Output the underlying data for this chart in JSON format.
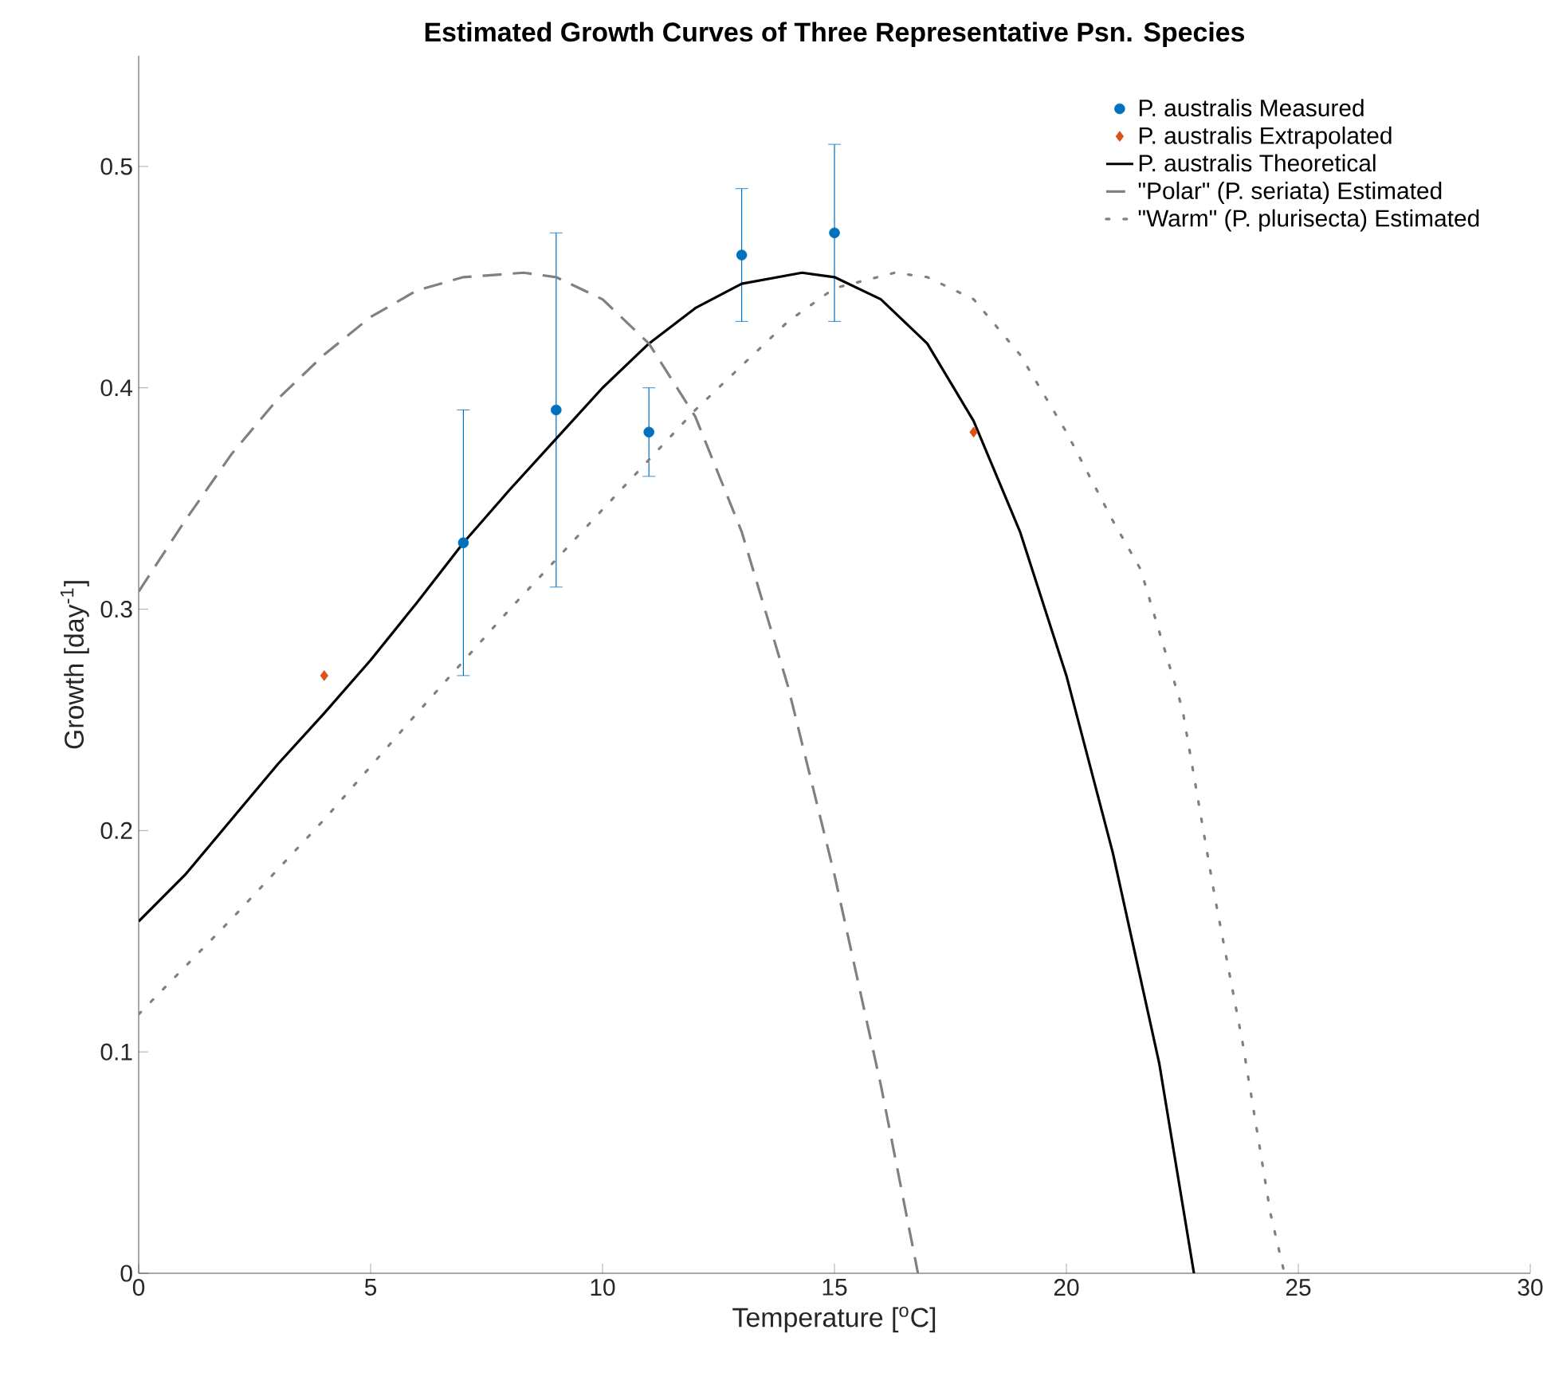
{
  "chart_data": {
    "type": "line",
    "title": "Estimated Growth Curves of Three Representative Psn. Species",
    "xlabel": "Temperature [$^{o}$C]",
    "ylabel": "Growth [day$^{-1}$]",
    "xlim": [
      0,
      30
    ],
    "ylim": [
      0,
      0.55
    ],
    "xticks": [
      0,
      5,
      10,
      15,
      20,
      25,
      30
    ],
    "yticks": [
      0,
      0.1,
      0.2,
      0.3,
      0.4,
      0.5
    ],
    "grid": false,
    "legend": "top right",
    "series": [
      {
        "name": "P. australis Measured",
        "type": "scatter",
        "marker": "circle",
        "color": "#0072bd",
        "x": [
          7,
          9,
          11,
          13,
          15
        ],
        "values": [
          0.33,
          0.39,
          0.38,
          0.46,
          0.47
        ],
        "errors": [
          [
            0.27,
            0.39
          ],
          [
            0.31,
            0.47
          ],
          [
            0.36,
            0.4
          ],
          [
            0.43,
            0.49
          ],
          [
            0.43,
            0.51
          ]
        ]
      },
      {
        "name": "P. australis Extrapolated",
        "type": "scatter",
        "marker": "diamond",
        "color": "#d95319",
        "x": [
          4,
          18
        ],
        "values": [
          0.27,
          0.38
        ]
      },
      {
        "name": "P. australis Theoretical",
        "line_style": "solid",
        "color": "#000000",
        "x": [
          0,
          1,
          2,
          3,
          4,
          5,
          6,
          7,
          8,
          9,
          10,
          11,
          12,
          13,
          14.3,
          15,
          16,
          17,
          18,
          19,
          20,
          21,
          22,
          22.75
        ],
        "values": [
          0.159,
          0.18,
          0.205,
          0.23,
          0.253,
          0.277,
          0.303,
          0.33,
          0.354,
          0.377,
          0.4,
          0.42,
          0.436,
          0.447,
          0.452,
          0.45,
          0.44,
          0.42,
          0.385,
          0.335,
          0.27,
          0.19,
          0.095,
          0
        ]
      },
      {
        "name": "\"Polar\" (P. seriata) Estimated",
        "line_style": "dashed",
        "color": "#808080",
        "x": [
          0,
          1,
          2,
          3,
          4,
          5,
          6,
          7,
          8.3,
          9,
          10,
          11,
          12,
          13,
          14,
          15,
          16,
          16.8
        ],
        "values": [
          0.308,
          0.34,
          0.37,
          0.395,
          0.415,
          0.432,
          0.444,
          0.45,
          0.452,
          0.45,
          0.44,
          0.42,
          0.387,
          0.335,
          0.265,
          0.18,
          0.085,
          0
        ]
      },
      {
        "name": "\"Warm\" (P. plurisecta) Estimated",
        "line_style": "dotted",
        "color": "#808080",
        "x": [
          0,
          2,
          4,
          6,
          8,
          10,
          12,
          13,
          14,
          15,
          16.3,
          17,
          18,
          19,
          20,
          21,
          21.6,
          22.5,
          23.2,
          23.8,
          24.4,
          24.7
        ],
        "values": [
          0.117,
          0.16,
          0.205,
          0.253,
          0.3,
          0.345,
          0.39,
          0.41,
          0.43,
          0.445,
          0.452,
          0.45,
          0.44,
          0.415,
          0.38,
          0.34,
          0.318,
          0.255,
          0.17,
          0.104,
          0.027,
          0
        ]
      }
    ]
  }
}
